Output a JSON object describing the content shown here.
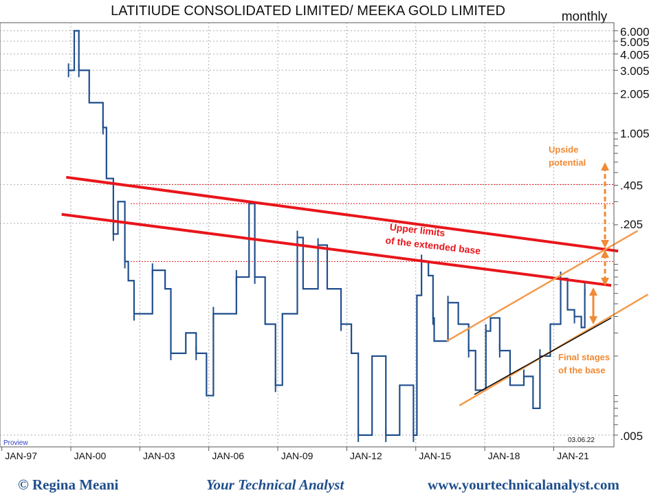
{
  "chart_data": {
    "type": "line",
    "title": "LATITIUDE CONSOLIDATED LIMITED/ MEEKA GOLD LIMITED",
    "period": "monthly",
    "date_stamp": "03.06.22",
    "source_tag": "Proview",
    "y_scale": "log",
    "ylim": [
      0.0045,
      7
    ],
    "y_ticks": [
      {
        "value": 6.0,
        "label": "6.000"
      },
      {
        "value": 5.005,
        "label": "5.005"
      },
      {
        "value": 4.005,
        "label": "4.005"
      },
      {
        "value": 3.005,
        "label": "3.005"
      },
      {
        "value": 2.005,
        "label": "2.005"
      },
      {
        "value": 1.005,
        "label": "1.005"
      },
      {
        "value": 0.405,
        "label": ".405"
      },
      {
        "value": 0.205,
        "label": ".205"
      },
      {
        "value": 0.005,
        "label": ".005"
      }
    ],
    "x_ticks": [
      {
        "value": 1997,
        "label": "JAN-97"
      },
      {
        "value": 2000,
        "label": "JAN-00"
      },
      {
        "value": 2003,
        "label": "JAN-03"
      },
      {
        "value": 2006,
        "label": "JAN-06"
      },
      {
        "value": 2009,
        "label": "JAN-09"
      },
      {
        "value": 2012,
        "label": "JAN-12"
      },
      {
        "value": 2015,
        "label": "JAN-15"
      },
      {
        "value": 2018,
        "label": "JAN-18"
      },
      {
        "value": 2021,
        "label": "JAN-21"
      }
    ],
    "series": [
      {
        "name": "price",
        "color": "#1f4e8c",
        "points": [
          [
            1999.9,
            3.0
          ],
          [
            2000.15,
            6.0
          ],
          [
            2000.35,
            3.0
          ],
          [
            2000.8,
            1.7
          ],
          [
            2001.4,
            1.1
          ],
          [
            2001.55,
            0.45
          ],
          [
            2001.85,
            0.17
          ],
          [
            2002.05,
            0.3
          ],
          [
            2002.35,
            0.105
          ],
          [
            2002.5,
            0.075
          ],
          [
            2002.75,
            0.042
          ],
          [
            2003.35,
            0.042
          ],
          [
            2003.55,
            0.09
          ],
          [
            2004.1,
            0.065
          ],
          [
            2004.35,
            0.021
          ],
          [
            2005.0,
            0.03
          ],
          [
            2005.45,
            0.021
          ],
          [
            2005.9,
            0.01
          ],
          [
            2006.2,
            0.042
          ],
          [
            2007.1,
            0.042
          ],
          [
            2007.2,
            0.08
          ],
          [
            2007.75,
            0.29
          ],
          [
            2008.0,
            0.08
          ],
          [
            2008.45,
            0.035
          ],
          [
            2008.9,
            0.012
          ],
          [
            2009.2,
            0.042
          ],
          [
            2009.85,
            0.16
          ],
          [
            2010.1,
            0.065
          ],
          [
            2010.75,
            0.14
          ],
          [
            2011.15,
            0.065
          ],
          [
            2011.75,
            0.035
          ],
          [
            2012.2,
            0.021
          ],
          [
            2012.5,
            0.005
          ],
          [
            2013.1,
            0.02
          ],
          [
            2013.7,
            0.005
          ],
          [
            2014.3,
            0.012
          ],
          [
            2014.9,
            0.005
          ],
          [
            2015.05,
            0.058
          ],
          [
            2015.25,
            0.105
          ],
          [
            2015.55,
            0.082
          ],
          [
            2015.75,
            0.039
          ],
          [
            2015.8,
            0.026
          ],
          [
            2016.4,
            0.051
          ],
          [
            2016.85,
            0.035
          ],
          [
            2017.3,
            0.022
          ],
          [
            2017.6,
            0.011
          ],
          [
            2018.05,
            0.031
          ],
          [
            2018.25,
            0.039
          ],
          [
            2018.65,
            0.022
          ],
          [
            2019.1,
            0.012
          ],
          [
            2019.7,
            0.014
          ],
          [
            2020.1,
            0.008
          ],
          [
            2020.4,
            0.02
          ],
          [
            2020.85,
            0.035
          ],
          [
            2021.3,
            0.078
          ],
          [
            2021.6,
            0.045
          ],
          [
            2021.9,
            0.04
          ],
          [
            2022.2,
            0.033
          ],
          [
            2022.35,
            0.065
          ]
        ]
      }
    ],
    "reference_levels": [
      0.405,
      0.29,
      0.105
    ],
    "trendlines": [
      {
        "name": "upper-red",
        "color": "#e8161b",
        "from": [
          1999.8,
          0.46
        ],
        "to": [
          2023.8,
          0.126
        ]
      },
      {
        "name": "lower-red",
        "color": "#e8161b",
        "from": [
          1999.6,
          0.24
        ],
        "to": [
          2023.5,
          0.069
        ]
      },
      {
        "name": "orange-upper",
        "color": "#f39a4a",
        "from": [
          2016.35,
          0.026
        ],
        "to": [
          2024.65,
          0.18
        ]
      },
      {
        "name": "orange-lower",
        "color": "#f39a4a",
        "from": [
          2016.9,
          0.0084
        ],
        "to": [
          2025.1,
          0.059
        ]
      },
      {
        "name": "black-support",
        "color": "#000000",
        "from": [
          2017.55,
          0.0102
        ],
        "to": [
          2023.5,
          0.039
        ]
      }
    ],
    "annotations": {
      "upper_limits": [
        "Upper limits",
        "of the extended base"
      ],
      "upside": [
        "Upside",
        "potential"
      ],
      "final_stages": [
        "Final stages",
        "of the base"
      ]
    }
  },
  "footer": {
    "copyright": "© Regina Meani",
    "tagline": "Your Technical Analyst",
    "website": "www.yourtechnicalanalyst.com"
  }
}
